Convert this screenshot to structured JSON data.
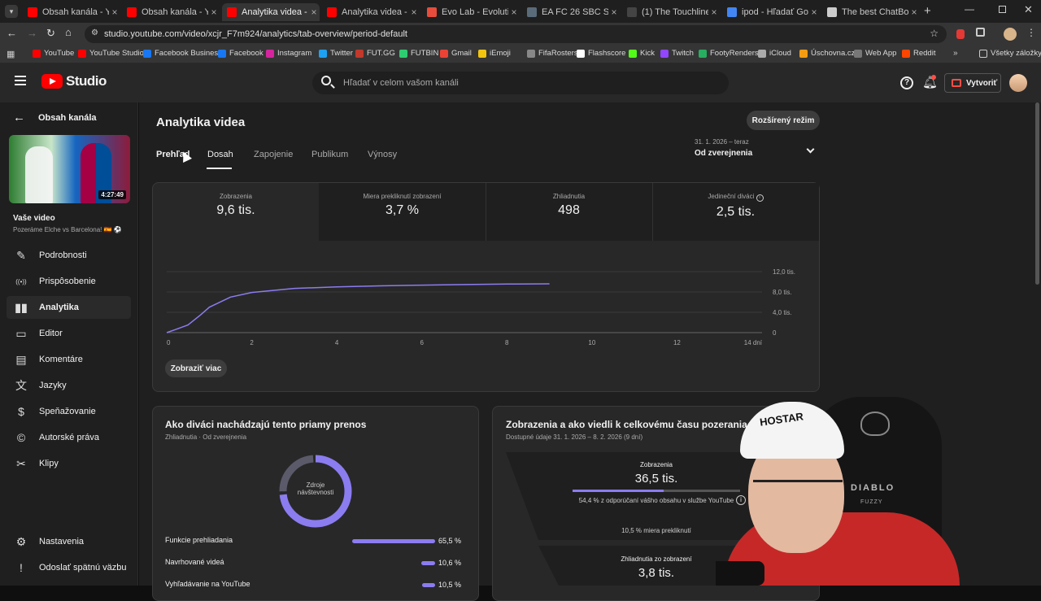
{
  "browser": {
    "tabs": [
      {
        "title": "Obsah kanála - YouTu",
        "color": "#ff0000"
      },
      {
        "title": "Obsah kanála - YouTu",
        "color": "#ff0000"
      },
      {
        "title": "Analytika videa - You",
        "color": "#ff0000"
      },
      {
        "title": "Analytika videa - You",
        "color": "#ff0000"
      },
      {
        "title": "Evo Lab - Evolutions",
        "color": "#e74c3c"
      },
      {
        "title": "EA FC 26 SBC Solutio",
        "color": "#5a6b7a"
      },
      {
        "title": "(1) The Touchline | T",
        "color": "#444444"
      },
      {
        "title": "ipod - Hľadať Google",
        "color": "#4285f4"
      },
      {
        "title": "The best ChatBot an",
        "color": "#cccccc"
      }
    ],
    "url": "studio.youtube.com/video/xcjr_F7m924/analytics/tab-overview/period-default",
    "bookmarks": [
      {
        "label": "YouTube",
        "color": "#ff0000"
      },
      {
        "label": "YouTube Studio",
        "color": "#ff0000"
      },
      {
        "label": "Facebook Business",
        "color": "#1877f2"
      },
      {
        "label": "Facebook",
        "color": "#1877f2"
      },
      {
        "label": "Instagram",
        "color": "#d6249f"
      },
      {
        "label": "Twitter",
        "color": "#1da1f2"
      },
      {
        "label": "FUT.GG",
        "color": "#c0392b"
      },
      {
        "label": "FUTBIN",
        "color": "#2ecc71"
      },
      {
        "label": "Gmail",
        "color": "#ea4335"
      },
      {
        "label": "iEmoji",
        "color": "#f1c40f"
      },
      {
        "label": "FifaRosters",
        "color": "#888888"
      },
      {
        "label": "Flashscore",
        "color": "#ffffff"
      },
      {
        "label": "Kick",
        "color": "#53fc18"
      },
      {
        "label": "Twitch",
        "color": "#9146ff"
      },
      {
        "label": "FootyRenders",
        "color": "#27ae60"
      },
      {
        "label": "iCloud",
        "color": "#aaaaaa"
      },
      {
        "label": "Úschovna.cz",
        "color": "#f39c12"
      },
      {
        "label": "Web App",
        "color": "#777777"
      },
      {
        "label": "Reddit",
        "color": "#ff4500"
      }
    ],
    "all_bookmarks": "Všetky záložky"
  },
  "header": {
    "logo_text": "Studio",
    "search_placeholder": "Hľadať v celom vašom kanáli",
    "create_label": "Vytvoriť"
  },
  "sidebar": {
    "back_label": "Obsah kanála",
    "thumb_duration": "4:27:49",
    "video_heading": "Vaše video",
    "video_title": "Pozeráme Elche vs Barcelona! 🇪🇸 ⚽",
    "items": [
      {
        "label": "Podrobnosti",
        "icon": "pencil-icon"
      },
      {
        "label": "Prispôsobenie",
        "icon": "broadcast-icon"
      },
      {
        "label": "Analytika",
        "icon": "analytics-icon"
      },
      {
        "label": "Editor",
        "icon": "editor-icon"
      },
      {
        "label": "Komentáre",
        "icon": "comment-icon"
      },
      {
        "label": "Jazyky",
        "icon": "language-icon"
      },
      {
        "label": "Speňažovanie",
        "icon": "dollar-icon"
      },
      {
        "label": "Autorské práva",
        "icon": "copyright-icon"
      },
      {
        "label": "Klipy",
        "icon": "scissors-icon"
      }
    ],
    "settings_label": "Nastavenia",
    "feedback_label": "Odoslať spätnú väzbu"
  },
  "analytics": {
    "title": "Analytika videa",
    "advanced_button": "Rozšírený režim",
    "tabs": [
      "Prehľad",
      "Dosah",
      "Zapojenie",
      "Publikum",
      "Výnosy"
    ],
    "period_range": "31. 1. 2026 – teraz",
    "period_label": "Od zverejnenia",
    "metrics": [
      {
        "label": "Zobrazenia",
        "value": "9,6 tis."
      },
      {
        "label": "Miera prekliknutí zobrazení",
        "value": "3,7 %"
      },
      {
        "label": "Zhliadnutia",
        "value": "498"
      },
      {
        "label": "Jedineční diváci",
        "value": "2,5 tis."
      }
    ],
    "show_more": "Zobraziť viac"
  },
  "chart_data": {
    "type": "line",
    "series": [
      {
        "name": "Zobrazenia",
        "x": [
          0,
          0.2,
          0.5,
          0.8,
          1.0,
          1.5,
          2.0,
          3.0,
          4.0,
          5.0,
          6.0,
          7.0,
          8.0,
          9.0
        ],
        "values": [
          0,
          600,
          1500,
          3500,
          5000,
          7000,
          7900,
          8700,
          9000,
          9200,
          9350,
          9450,
          9550,
          9600
        ]
      }
    ],
    "x_ticks": [
      "0",
      "2",
      "4",
      "6",
      "8",
      "10",
      "12",
      "14 dní"
    ],
    "x_tick_values": [
      0,
      2,
      4,
      6,
      8,
      10,
      12,
      14
    ],
    "y_ticks": [
      "0",
      "4,0 tis.",
      "8,0 tis.",
      "12,0 tis."
    ],
    "y_tick_values": [
      0,
      4000,
      8000,
      12000
    ],
    "xlim": [
      0,
      14
    ],
    "ylim": [
      0,
      12000
    ],
    "color": "#8b7cf0"
  },
  "traffic_card": {
    "title": "Ako diváci nachádzajú tento priamy prenos",
    "subtitle": "Zhliadnutia · Od zverejnenia",
    "donut_label": "Zdroje návštevnosti",
    "rows": [
      {
        "label": "Funkcie prehliadania",
        "pct": "65,5 %",
        "value": 65.5
      },
      {
        "label": "Navrhované videá",
        "pct": "10,6 %",
        "value": 10.6
      },
      {
        "label": "Vyhľadávanie na YouTube",
        "pct": "10,5 %",
        "value": 10.5
      }
    ]
  },
  "funnel_card": {
    "title": "Zobrazenia a ako viedli k celkovému času pozerania",
    "subtitle": "Dostupné údaje 31. 1. 2026 – 8. 2. 2026 (9 dní)",
    "impressions_label": "Zobrazenia",
    "impressions_value": "36,5 tis.",
    "impressions_note": "54,4 % z odporúčaní vášho obsahu v službe YouTube",
    "ctr_note": "10,5 % miera prekliknutí",
    "views_label": "Zhliadnutia zo zobrazení",
    "views_value": "3,8 tis."
  },
  "webcam": {
    "cap_text": "HOSTAR",
    "chair_text": "DIABLO",
    "chair_sub": "FUZZY"
  }
}
